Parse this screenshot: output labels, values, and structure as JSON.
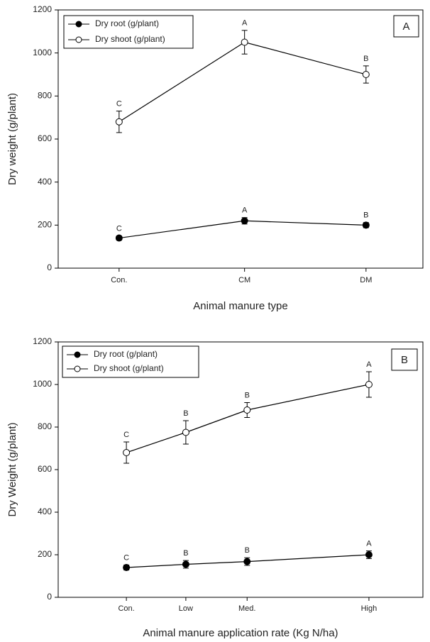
{
  "chart_data": [
    {
      "type": "line",
      "panel_label": "A",
      "x_label": "Animal manure type",
      "y_label": "Dry weight (g/plant)",
      "categories": [
        "Con.",
        "CM",
        "DM"
      ],
      "ylim": [
        0,
        1200
      ],
      "yticks": [
        0,
        200,
        400,
        600,
        800,
        1000,
        1200
      ],
      "legend": "upper left",
      "series": [
        {
          "name": "Dry root (g/plant)",
          "marker": "filled",
          "color": "#000000",
          "values": [
            140,
            220,
            200
          ],
          "errors": [
            10,
            15,
            12
          ],
          "letters": [
            "C",
            "A",
            "B"
          ]
        },
        {
          "name": "Dry shoot (g/plant)",
          "marker": "open",
          "color": "#000000",
          "values": [
            680,
            1050,
            900
          ],
          "errors": [
            50,
            55,
            40
          ],
          "letters": [
            "C",
            "A",
            "B"
          ]
        }
      ]
    },
    {
      "type": "line",
      "panel_label": "B",
      "x_label": "Animal manure application rate (Kg N/ha)",
      "y_label": "Dry Weight (g/plant)",
      "categories": [
        "Con.",
        "Low",
        "Med.",
        "High"
      ],
      "ylim": [
        0,
        1200
      ],
      "yticks": [
        0,
        200,
        400,
        600,
        800,
        1000,
        1200
      ],
      "legend": "upper left",
      "series": [
        {
          "name": "Dry root (g/plant)",
          "marker": "filled",
          "color": "#000000",
          "values": [
            140,
            155,
            168,
            200
          ],
          "errors": [
            12,
            18,
            18,
            18
          ],
          "letters": [
            "C",
            "B",
            "B",
            "A"
          ]
        },
        {
          "name": "Dry shoot (g/plant)",
          "marker": "open",
          "color": "#000000",
          "values": [
            680,
            775,
            880,
            1000
          ],
          "errors": [
            50,
            55,
            35,
            60
          ],
          "letters": [
            "C",
            "B",
            "B",
            "A"
          ]
        }
      ]
    }
  ]
}
